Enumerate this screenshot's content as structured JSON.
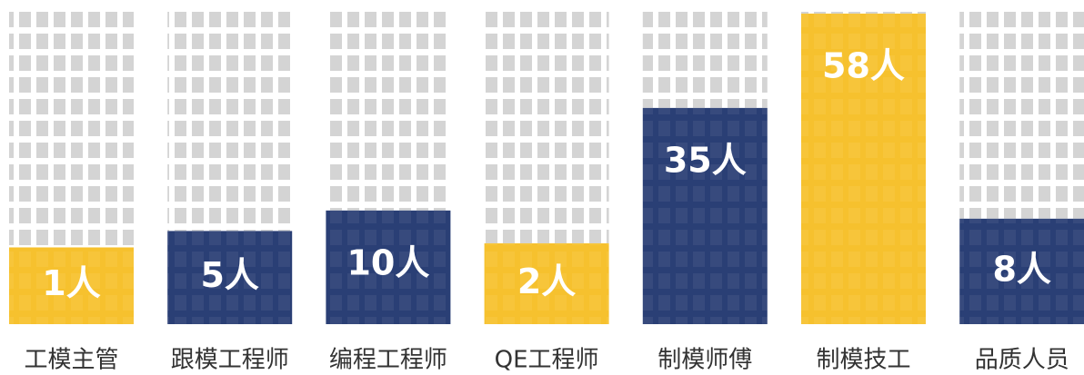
{
  "chart_data": {
    "type": "bar",
    "categories": [
      "工模主管",
      "跟模工程师",
      "编程工程师",
      "QE工程师",
      "制模师傅",
      "制模技工",
      "品质人员"
    ],
    "values": [
      1,
      5,
      10,
      2,
      35,
      58,
      8
    ],
    "value_labels": [
      "1人",
      "5人",
      "10人",
      "2人",
      "35人",
      "58人",
      "8人"
    ],
    "colors": [
      "#f6c12e",
      "#2a3f75",
      "#2a3f75",
      "#f6c12e",
      "#2a3f75",
      "#f6c12e",
      "#2a3f75"
    ]
  }
}
